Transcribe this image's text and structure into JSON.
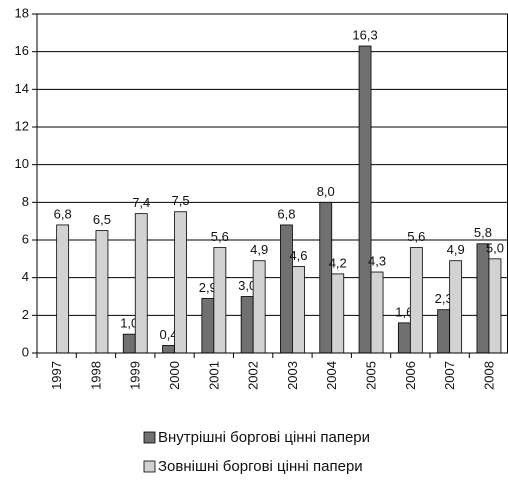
{
  "chart_data": {
    "type": "bar",
    "categories": [
      "1997",
      "1998",
      "1999",
      "2000",
      "2001",
      "2002",
      "2003",
      "2004",
      "2005",
      "2006",
      "2007",
      "2008"
    ],
    "series": [
      {
        "name": "Внутрішні боргові цінні папери",
        "color": "#707070",
        "values": [
          null,
          null,
          1.0,
          0.4,
          2.9,
          3.0,
          6.8,
          8.0,
          16.3,
          1.6,
          2.3,
          5.8
        ],
        "value_labels": [
          null,
          null,
          "1,0",
          "0,4",
          "2,9",
          "3,0",
          "6,8",
          "8,0",
          "16,3",
          "1,6",
          "2,3",
          "5,8"
        ]
      },
      {
        "name": "Зовнішні боргові цінні папери",
        "color": "#d2d2d2",
        "values": [
          6.8,
          6.5,
          7.4,
          7.5,
          5.6,
          4.9,
          4.6,
          4.2,
          4.3,
          5.6,
          4.9,
          5.0
        ],
        "value_labels": [
          "6,8",
          "6,5",
          "7,4",
          "7,5",
          "5,6",
          "4,9",
          "4,6",
          "4,2",
          "4,3",
          "5,6",
          "4,9",
          "5,0"
        ]
      }
    ],
    "ylim": [
      0,
      18
    ],
    "yticks": [
      0,
      2,
      4,
      6,
      8,
      10,
      12,
      14,
      16,
      18
    ],
    "grid": true,
    "legend": "bottom"
  }
}
